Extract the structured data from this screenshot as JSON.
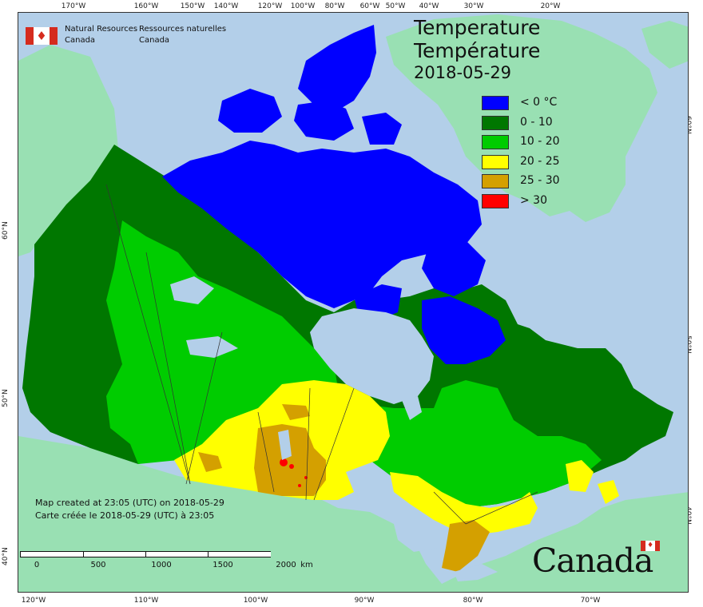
{
  "map": {
    "title_en": "Temperature",
    "title_fr": "Température",
    "date": "2018-05-29",
    "agency_en_line1": "Natural Resources",
    "agency_en_line2": "Canada",
    "agency_fr_line1": "Ressources naturelles",
    "agency_fr_line2": "Canada",
    "created_en": "Map created at 23:05 (UTC) on 2018-05-29",
    "created_fr": "Carte créée le 2018-05-29 (UTC) à 23:05",
    "wordmark": "Canada"
  },
  "legend": [
    {
      "label": "< 0 °C",
      "color": "#0000ff"
    },
    {
      "label": "0 - 10",
      "color": "#007700"
    },
    {
      "label": "10 - 20",
      "color": "#00cc00"
    },
    {
      "label": "20 - 25",
      "color": "#ffff00"
    },
    {
      "label": "25 - 30",
      "color": "#d4a000"
    },
    {
      "label": "> 30",
      "color": "#ff0000"
    }
  ],
  "colors": {
    "ocean": "#b3cfe9",
    "foreign_land": "#99e0b3",
    "flag_red": "#d52b1e"
  },
  "graticule": {
    "top": [
      "170°W",
      "160°W",
      "150°W",
      "140°W",
      "120°W",
      "100°W",
      "80°W",
      "60°W",
      "50°W",
      "40°W",
      "30°W",
      "20°W"
    ],
    "bottom": [
      "120°W",
      "110°W",
      "100°W",
      "90°W",
      "80°W",
      "70°W"
    ],
    "left": [
      "60°N",
      "50°N",
      "40°N"
    ],
    "right": [
      "60°N",
      "50°N",
      "40°N"
    ]
  },
  "scale": {
    "labels": [
      "0",
      "500",
      "1000",
      "1500",
      "2000"
    ],
    "unit": "km"
  }
}
